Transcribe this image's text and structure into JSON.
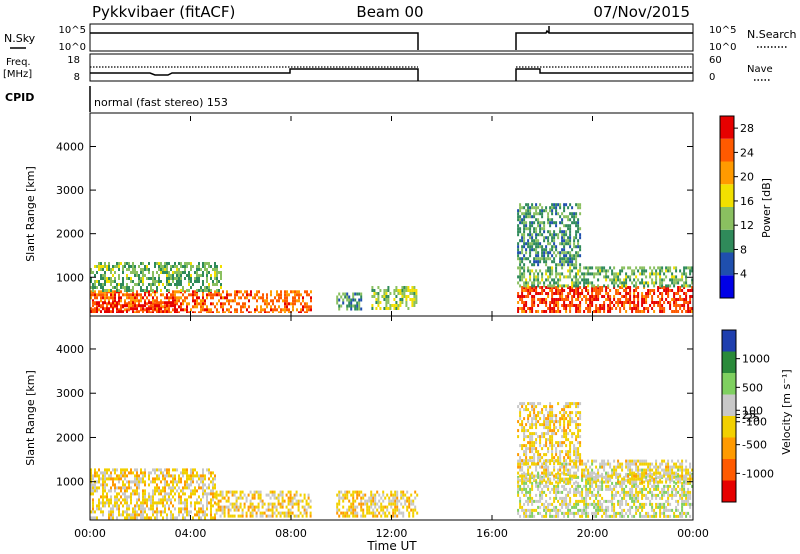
{
  "header": {
    "station": "Pykkvibaer (fitACF)",
    "beam": "Beam 00",
    "date": "07/Nov/2015"
  },
  "info_panels": {
    "nsky_label": "N.Sky",
    "nsearch_label": "N.Search",
    "nsky_ticks": [
      "10^5",
      "10^0"
    ],
    "nsearch_ticks": [
      "10^5",
      "10^0"
    ],
    "freq_label": "Freq.",
    "freq_unit": "[MHz]",
    "freq_ticks": [
      "18",
      "8"
    ],
    "nave_label": "Nave",
    "nave_ticks": [
      "60",
      "0"
    ],
    "cpid_label": "CPID",
    "cpid_text": "normal (fast stereo) 153"
  },
  "x_axis": {
    "title": "Time UT",
    "ticks": [
      "00:00",
      "04:00",
      "08:00",
      "12:00",
      "16:00",
      "20:00",
      "00:00"
    ],
    "tick_hours": [
      0,
      4,
      8,
      12,
      16,
      20,
      24
    ]
  },
  "colors": {
    "power_scale": [
      "#0000e6",
      "#1f4fae",
      "#2f8a5a",
      "#8ac060",
      "#f2e000",
      "#ff9a00",
      "#ff5a00",
      "#e60000"
    ],
    "velocity_scale": [
      "#e60000",
      "#ff5a00",
      "#ff9a00",
      "#f2d000",
      "#c8c8c8",
      "#7fd060",
      "#2a8a3a",
      "#1f3fae"
    ]
  },
  "chart_data": [
    {
      "type": "heatmap",
      "name": "power",
      "ylabel": "Slant Range [km]",
      "yticks": [
        1000,
        2000,
        3000,
        4000
      ],
      "ylim": [
        180,
        4700
      ],
      "xlim": [
        0,
        24
      ],
      "colorbar": {
        "label": "Power [dB]",
        "ticks": [
          4,
          8,
          12,
          16,
          20,
          24,
          28
        ],
        "range": [
          0,
          30
        ]
      },
      "data_coverage_hours": [
        [
          0,
          13
        ],
        [
          17,
          24
        ]
      ],
      "regions": [
        {
          "x": [
            0,
            8.8
          ],
          "range_km": [
            200,
            700
          ],
          "value_db": 24
        },
        {
          "x": [
            0,
            3.5
          ],
          "range_km": [
            200,
            450
          ],
          "value_db": 28
        },
        {
          "x": [
            0,
            5.2
          ],
          "range_km": [
            700,
            1350
          ],
          "value_db": 12
        },
        {
          "x": [
            9.8,
            10.8
          ],
          "range_km": [
            300,
            650
          ],
          "value_db": 10
        },
        {
          "x": [
            11.2,
            13
          ],
          "range_km": [
            300,
            800
          ],
          "value_db": 14
        },
        {
          "x": [
            17,
            24
          ],
          "range_km": [
            200,
            800
          ],
          "value_db": 26
        },
        {
          "x": [
            17,
            24
          ],
          "range_km": [
            800,
            1250
          ],
          "value_db": 12
        },
        {
          "x": [
            17,
            19.5
          ],
          "range_km": [
            1300,
            2700
          ],
          "value_db": 10
        }
      ]
    },
    {
      "type": "heatmap",
      "name": "velocity",
      "ylabel": "Slant Range [km]",
      "yticks": [
        1000,
        2000,
        3000,
        4000
      ],
      "ylim": [
        180,
        4700
      ],
      "xlim": [
        0,
        24
      ],
      "colorbar": {
        "label": "Velocity [m s⁻¹]",
        "ticks": [
          -1000,
          -500,
          -100,
          -25,
          25,
          100,
          500,
          1000
        ],
        "range": [
          -1500,
          1500
        ]
      },
      "data_coverage_hours": [
        [
          0,
          13
        ],
        [
          17,
          24
        ]
      ],
      "regions": [
        {
          "x": [
            0,
            5
          ],
          "range_km": [
            200,
            1300
          ],
          "value_ms": -100
        },
        {
          "x": [
            5,
            8.8
          ],
          "range_km": [
            200,
            800
          ],
          "value_ms": -150
        },
        {
          "x": [
            9.8,
            13
          ],
          "range_km": [
            250,
            800
          ],
          "value_ms": -120
        },
        {
          "x": [
            17,
            24
          ],
          "range_km": [
            200,
            1200
          ],
          "value_ms": 150
        },
        {
          "x": [
            17,
            24
          ],
          "range_km": [
            1000,
            1500
          ],
          "value_ms": 0
        },
        {
          "x": [
            17,
            19.5
          ],
          "range_km": [
            1400,
            2800
          ],
          "value_ms": -100
        }
      ]
    }
  ]
}
